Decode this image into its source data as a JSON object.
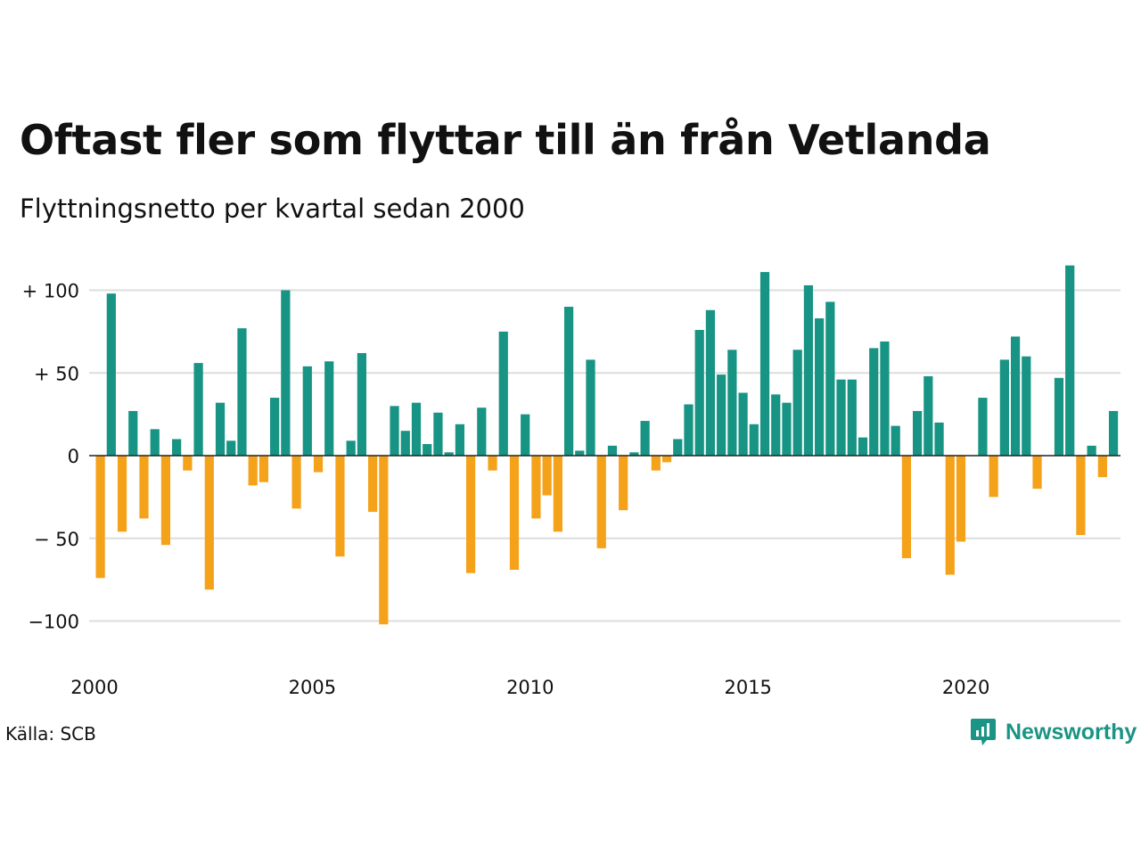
{
  "title": "Oftast fler som flyttar till än från Vetlanda",
  "subtitle": "Flyttningsnetto per kvartal sedan 2000",
  "source": "Källa: SCB",
  "brand": {
    "name": "Newsworthy",
    "color": "#1a9484"
  },
  "colors": {
    "positive": "#179484",
    "negative": "#f5a21b",
    "grid": "#dddddd",
    "zero_line": "#222222"
  },
  "chart_data": {
    "type": "bar",
    "title": "Oftast fler som flyttar till än från Vetlanda",
    "subtitle": "Flyttningsnetto per kvartal sedan 2000",
    "xlabel": "",
    "ylabel": "",
    "x_start_year": 2000,
    "periods_per_year": 4,
    "ylim": [
      -110,
      115
    ],
    "yticks": [
      {
        "value": 100,
        "label": "+ 100"
      },
      {
        "value": 50,
        "label": "+  50"
      },
      {
        "value": 0,
        "label": "0"
      },
      {
        "value": -50,
        "label": "− 50"
      },
      {
        "value": -100,
        "label": "−100"
      }
    ],
    "xticks": [
      {
        "value": 2000,
        "label": "2000"
      },
      {
        "value": 2005,
        "label": "2005"
      },
      {
        "value": 2010,
        "label": "2010"
      },
      {
        "value": 2015,
        "label": "2015"
      },
      {
        "value": 2020,
        "label": "2020"
      }
    ],
    "grid": true,
    "series": [
      {
        "values": [
          -74,
          98,
          -46,
          27,
          -38,
          16,
          -54,
          10,
          -9,
          56,
          -81,
          32,
          9,
          77,
          -18,
          -16,
          35,
          100,
          -32,
          54,
          -10,
          57,
          -61,
          9,
          62,
          -34,
          -102,
          30,
          15,
          32,
          7,
          26,
          2,
          19,
          -71,
          29,
          -9,
          75,
          -69,
          25,
          -38,
          -24,
          -46,
          90,
          3,
          58,
          -56,
          6,
          -33,
          2,
          21,
          -9,
          -4,
          10,
          31,
          76,
          88,
          49,
          64,
          38,
          19,
          111,
          37,
          32,
          64,
          103,
          83,
          93,
          46,
          46,
          11,
          65,
          69,
          18,
          -62,
          27,
          48,
          20,
          -72,
          -52,
          0,
          35,
          -25,
          58,
          72,
          60,
          -20,
          0,
          47,
          115,
          -48,
          6,
          -13,
          27
        ]
      }
    ]
  }
}
